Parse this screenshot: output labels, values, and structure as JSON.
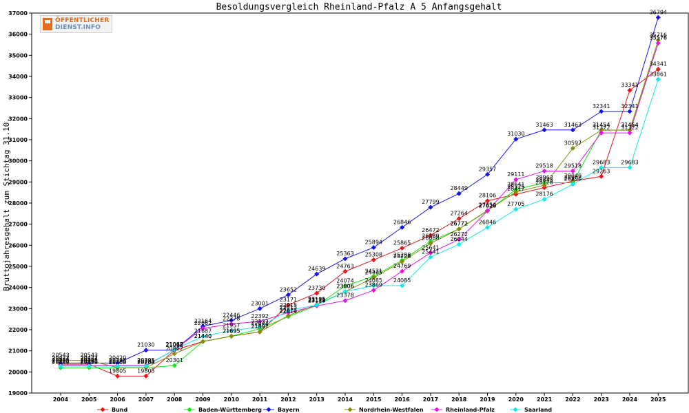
{
  "logo": {
    "line1": "ÖFFENTLICHER",
    "line2": "DIENST.INFO"
  },
  "chart_data": {
    "type": "line",
    "title": "Besoldungsvergleich Rheinland-Pfalz A 5 Anfangsgehalt",
    "xlabel": "",
    "ylabel": "Bruttojahresgehalt zum Stichtag 31.10.",
    "x": [
      "2004",
      "2005",
      "2006",
      "2007",
      "2008",
      "2009",
      "2010",
      "2011",
      "2012",
      "2013",
      "2014",
      "2015",
      "2016",
      "2017",
      "2018",
      "2019",
      "2020",
      "2021",
      "2022",
      "2023",
      "2024",
      "2025"
    ],
    "ylim": [
      19000,
      37000
    ],
    "yticks": [
      19000,
      20000,
      21000,
      22000,
      23000,
      24000,
      25000,
      26000,
      27000,
      28000,
      29000,
      30000,
      31000,
      32000,
      33000,
      34000,
      35000,
      36000,
      37000
    ],
    "grid": false,
    "legend_position": "bottom",
    "series": [
      {
        "name": "Bund",
        "color": "#e8141c",
        "values": [
          20364,
          20364,
          19805,
          19805,
          21032,
          21440,
          21695,
          21897,
          23171,
          23730,
          24763,
          25308,
          25865,
          26472,
          27264,
          28106,
          28417,
          28728,
          29040,
          29263,
          33341,
          34341
        ]
      },
      {
        "name": "Baden-Württemberg",
        "color": "#14e814",
        "values": [
          20199,
          20199,
          20200,
          20200,
          20301,
          21440,
          21695,
          22042,
          22619,
          23148,
          24074,
          24531,
          25288,
          26189,
          26772,
          27626,
          28641,
          28962,
          28962,
          31454,
          31454,
          35576
        ]
      },
      {
        "name": "Bayern",
        "color": "#1414e8",
        "values": [
          20422,
          20422,
          20420,
          21030,
          21030,
          22164,
          22446,
          23001,
          23652,
          24639,
          25363,
          25894,
          26846,
          27799,
          28449,
          29357,
          31030,
          31463,
          31463,
          32341,
          32341,
          36794
        ]
      },
      {
        "name": "Nordrhein-Westfalen",
        "color": "#8a8a0a",
        "values": [
          20543,
          20543,
          20203,
          20203,
          20862,
          21440,
          21695,
          21897,
          22672,
          23195,
          23806,
          24465,
          25228,
          26088,
          26772,
          27650,
          28525,
          28843,
          30597,
          31454,
          31454,
          35716
        ]
      },
      {
        "name": "Rheinland-Pfalz",
        "color": "#e814e8",
        "values": [
          20305,
          20305,
          20305,
          20305,
          21047,
          22062,
          22278,
          22392,
          22813,
          23128,
          23378,
          23869,
          24769,
          25641,
          26272,
          27626,
          29111,
          29518,
          29518,
          31322,
          31322,
          35576
        ]
      },
      {
        "name": "Saarland",
        "color": "#14e8e8",
        "values": [
          20275,
          20275,
          20275,
          20275,
          21062,
          21687,
          21957,
          22132,
          22915,
          23171,
          23806,
          24085,
          24085,
          25441,
          26044,
          26846,
          27705,
          28176,
          28890,
          29683,
          29683,
          33861
        ]
      }
    ]
  }
}
